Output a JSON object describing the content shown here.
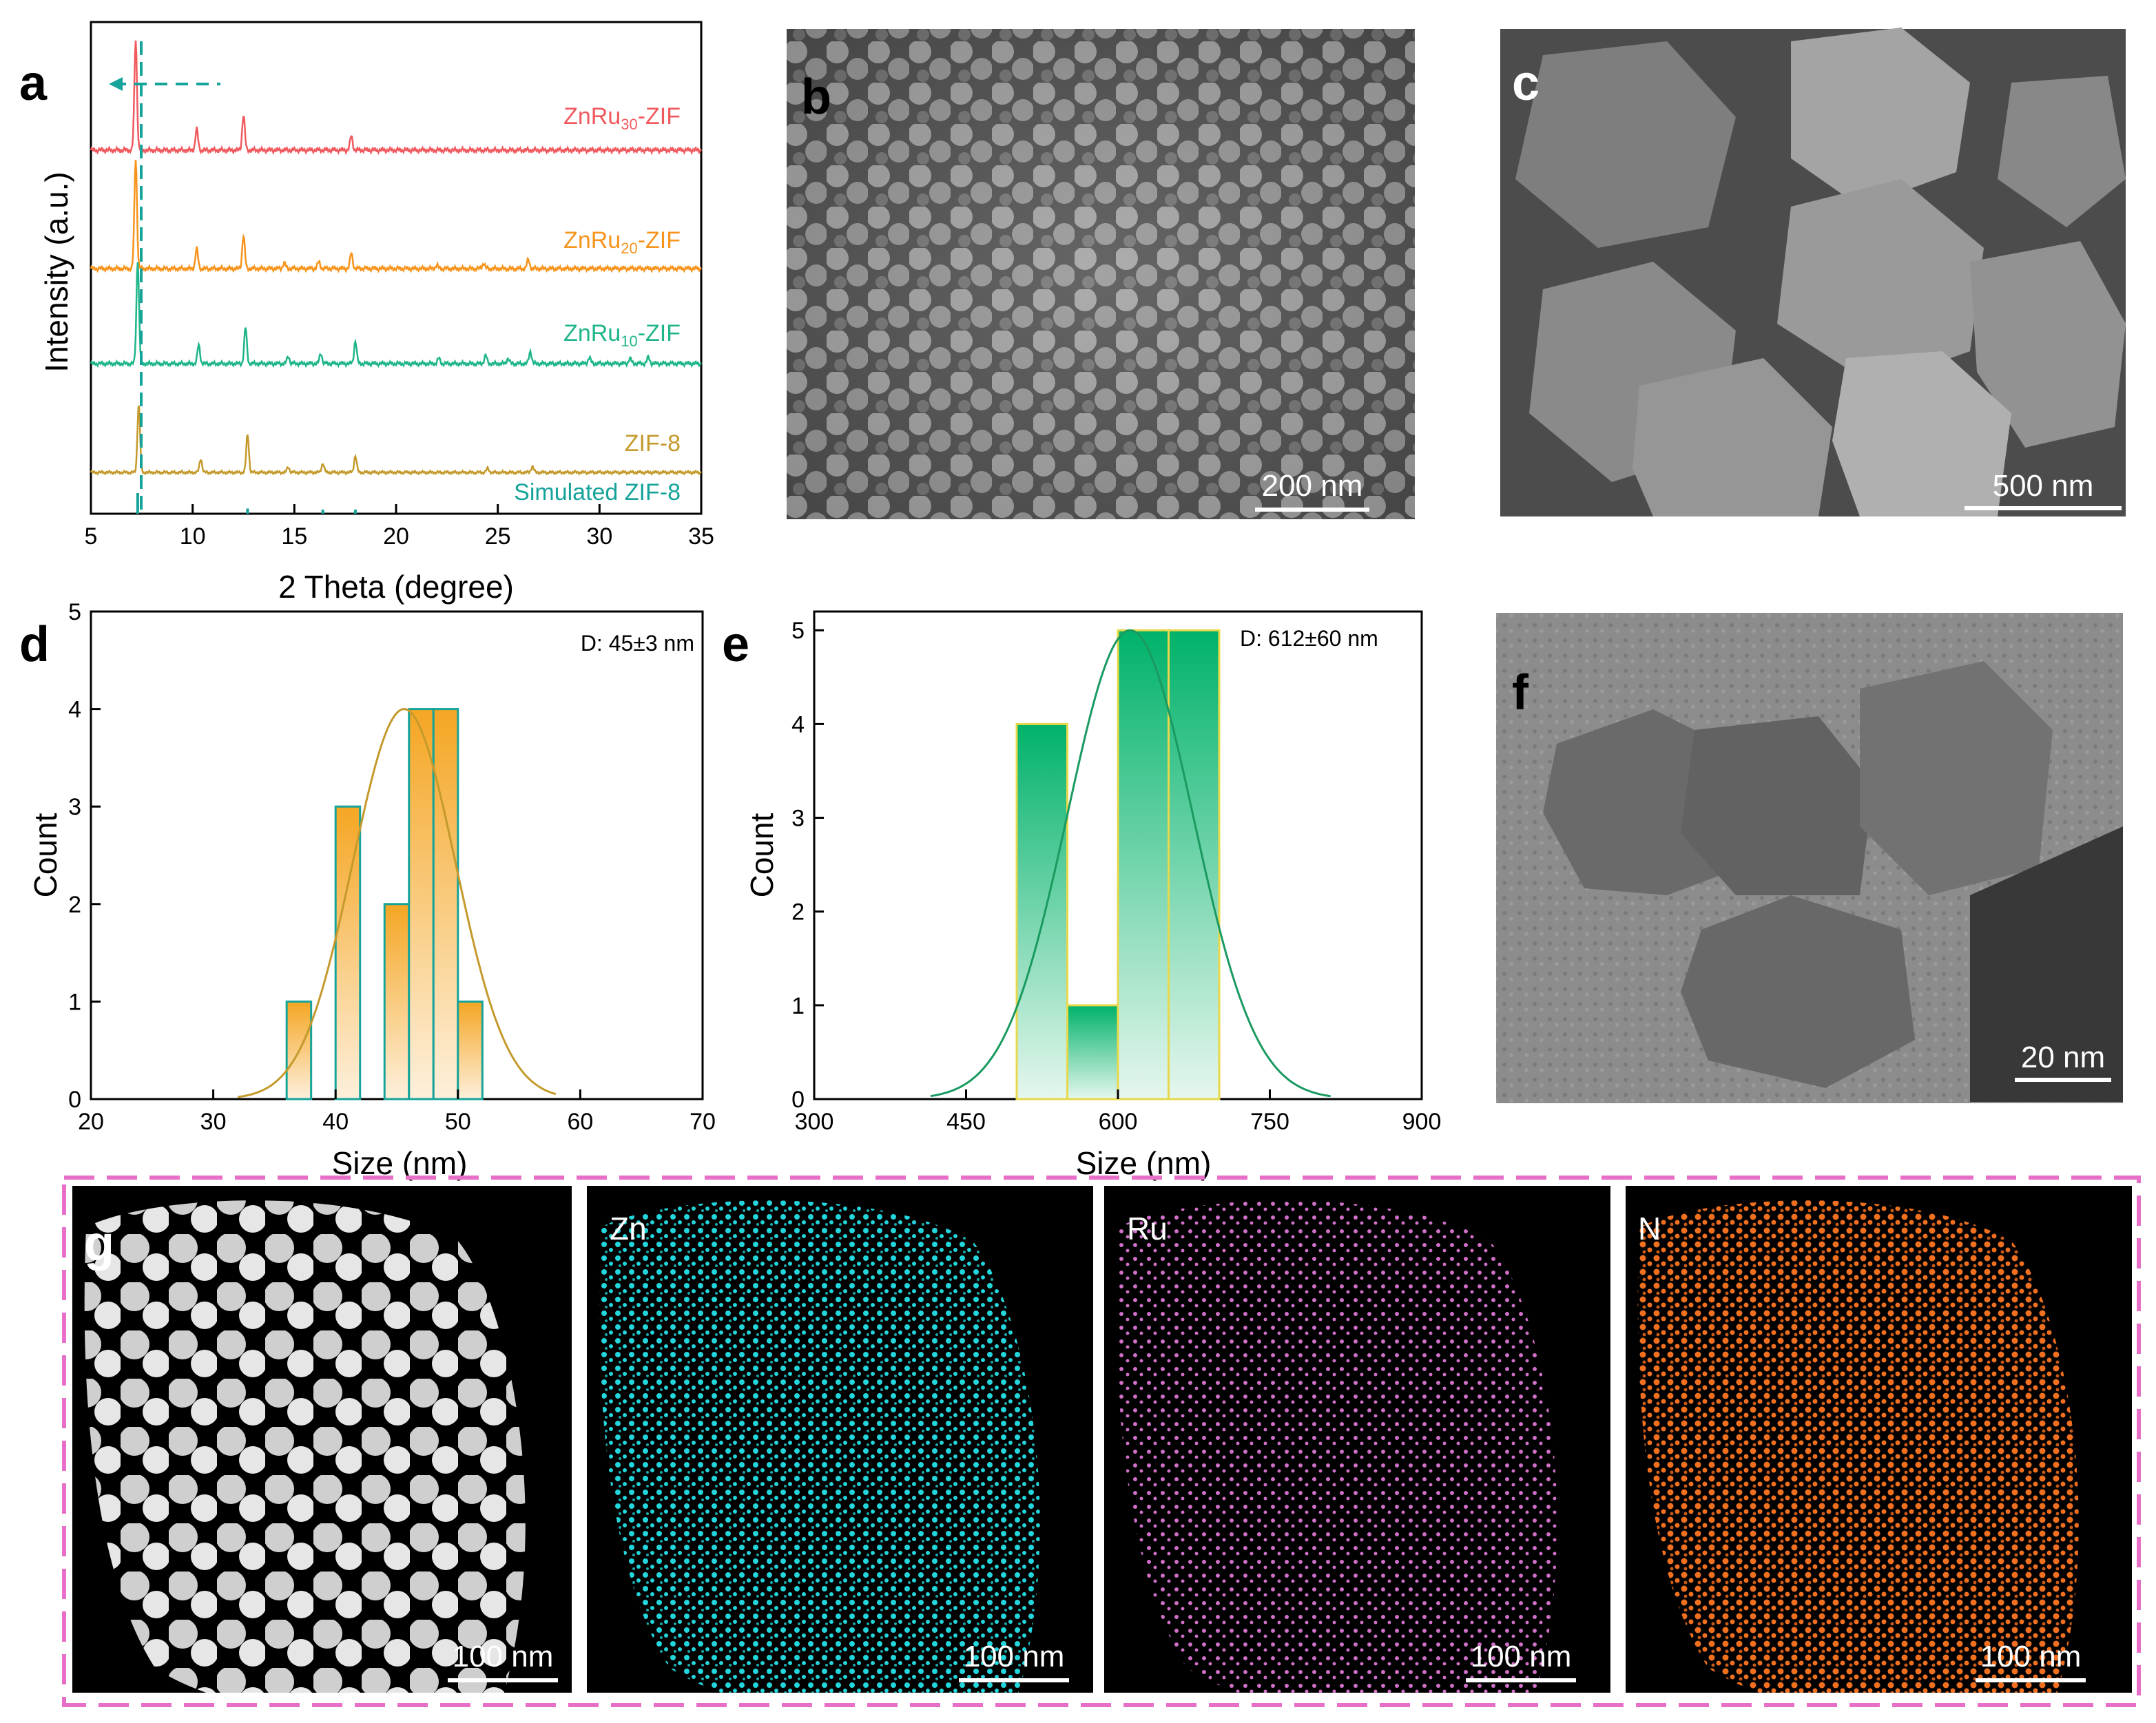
{
  "panel_labels": {
    "a": "a",
    "b": "b",
    "c": "c",
    "d": "d",
    "e": "e",
    "f": "f",
    "g": "g"
  },
  "scale_bars": {
    "b": "200 nm",
    "c": "500 nm",
    "f": "20 nm",
    "g1": "100 nm",
    "g2": "100 nm",
    "g3": "100 nm",
    "g4": "100 nm"
  },
  "eds_labels": {
    "zn": "Zn",
    "ru": "Ru",
    "n": "N"
  },
  "colors": {
    "zif30": "#f05a5f",
    "zif20": "#f7941d",
    "zif10": "#1fb58a",
    "zif8": "#c49a2c",
    "sim": "#16a39a",
    "orange_bar": "#f5a623",
    "green_bar": "#00b26a",
    "frame": "#e86fc8",
    "zn": "#22d6dc",
    "ru": "#d070c8",
    "n": "#f07020"
  },
  "chart_data": [
    {
      "panel": "a",
      "type": "line",
      "xlabel": "2 Theta (degree)",
      "ylabel": "Intensity (a.u.)",
      "xlim": [
        5,
        35
      ],
      "xticks": [
        "5",
        "10",
        "15",
        "20",
        "25",
        "30",
        "35"
      ],
      "series": [
        {
          "name": "ZnRu",
          "sub": "30",
          "suffix": "-ZIF",
          "color": "#f05a5f",
          "peaks": [
            [
              7.2,
              0.95
            ],
            [
              10.2,
              0.18
            ],
            [
              12.5,
              0.3
            ],
            [
              17.8,
              0.12
            ]
          ]
        },
        {
          "name": "ZnRu",
          "sub": "20",
          "suffix": "-ZIF",
          "color": "#f7941d",
          "peaks": [
            [
              7.2,
              1.0
            ],
            [
              10.2,
              0.18
            ],
            [
              12.5,
              0.3
            ],
            [
              14.5,
              0.05
            ],
            [
              16.2,
              0.06
            ],
            [
              17.8,
              0.14
            ],
            [
              22.0,
              0.03
            ],
            [
              24.3,
              0.05
            ],
            [
              26.5,
              0.08
            ]
          ]
        },
        {
          "name": "ZnRu",
          "sub": "10",
          "suffix": "-ZIF",
          "color": "#1fb58a",
          "peaks": [
            [
              7.3,
              1.0
            ],
            [
              10.3,
              0.18
            ],
            [
              12.6,
              0.35
            ],
            [
              14.7,
              0.07
            ],
            [
              16.3,
              0.1
            ],
            [
              18.0,
              0.22
            ],
            [
              22.1,
              0.05
            ],
            [
              24.4,
              0.08
            ],
            [
              25.5,
              0.05
            ],
            [
              26.6,
              0.12
            ],
            [
              29.5,
              0.06
            ],
            [
              31.5,
              0.05
            ],
            [
              32.4,
              0.06
            ]
          ]
        },
        {
          "name": "ZIF-8",
          "sub": "",
          "suffix": "",
          "color": "#c49a2c",
          "peaks": [
            [
              7.35,
              0.9
            ],
            [
              10.4,
              0.18
            ],
            [
              12.7,
              0.5
            ],
            [
              14.7,
              0.07
            ],
            [
              16.4,
              0.12
            ],
            [
              18.0,
              0.22
            ],
            [
              24.5,
              0.05
            ],
            [
              26.7,
              0.08
            ]
          ]
        }
      ],
      "simulated": {
        "name": "Simulated ZIF-8",
        "color": "#16a39a",
        "peaks": [
          [
            7.3,
            1.0
          ],
          [
            12.7,
            0.25
          ],
          [
            16.4,
            0.2
          ],
          [
            18.0,
            0.2
          ]
        ]
      }
    },
    {
      "panel": "d",
      "type": "bar",
      "xlabel": "Size (nm)",
      "ylabel": "Count",
      "xlim": [
        20,
        70
      ],
      "ylim": [
        0,
        5
      ],
      "xticks": [
        "20",
        "30",
        "40",
        "50",
        "60",
        "70"
      ],
      "yticks": [
        "0",
        "1",
        "2",
        "3",
        "4",
        "5"
      ],
      "annotation": "D: 45±3 nm",
      "bin_width": 2,
      "bars": [
        {
          "x": 37,
          "count": 1
        },
        {
          "x": 41,
          "count": 3
        },
        {
          "x": 45,
          "count": 2
        },
        {
          "x": 47,
          "count": 4
        },
        {
          "x": 49,
          "count": 4
        },
        {
          "x": 51,
          "count": 1
        }
      ],
      "fit": {
        "mean": 45.6,
        "sigma": 4.2,
        "peak": 4,
        "from": 32,
        "to": 58
      }
    },
    {
      "panel": "e",
      "type": "bar",
      "xlabel": "Size (nm)",
      "ylabel": "Count",
      "xlim": [
        300,
        900
      ],
      "ylim": [
        0,
        5.2
      ],
      "xticks": [
        "300",
        "450",
        "600",
        "750",
        "900"
      ],
      "yticks": [
        "0",
        "1",
        "2",
        "3",
        "4",
        "5"
      ],
      "annotation": "D: 612±60 nm",
      "bin_width": 50,
      "bars": [
        {
          "x": 525,
          "count": 4
        },
        {
          "x": 575,
          "count": 1
        },
        {
          "x": 625,
          "count": 5
        },
        {
          "x": 675,
          "count": 5
        }
      ],
      "fit": {
        "mean": 612,
        "sigma": 62,
        "peak": 5,
        "from": 415,
        "to": 810
      }
    }
  ]
}
